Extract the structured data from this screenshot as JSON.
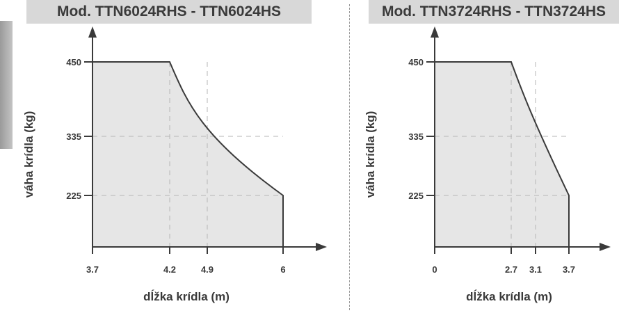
{
  "colors": {
    "header_bg": "#d8d8d8",
    "text": "#3a3a3a",
    "fill": "#e6e6e6",
    "line": "#3a3a3a",
    "grid": "#b5b5b5"
  },
  "chart_data": [
    {
      "type": "area",
      "title": "Mod. TTN6024RHS - TTN6024HS",
      "xlabel": "dĺžka krídla (m)",
      "ylabel": "váha krídla (kg)",
      "x_ticks": [
        3.7,
        4.2,
        4.9,
        6
      ],
      "x_tick_labels": [
        "3.7",
        "4.2",
        "4.9",
        "6"
      ],
      "y_ticks": [
        225,
        335,
        450
      ],
      "y_tick_labels": [
        "225",
        "335",
        "450"
      ],
      "series": [
        {
          "x": [
            3.7,
            4.2,
            4.9,
            6
          ],
          "y": [
            450,
            450,
            335,
            225
          ]
        }
      ],
      "grid": "dashed at tick values"
    },
    {
      "type": "area",
      "title": "Mod. TTN3724RHS - TTN3724HS",
      "xlabel": "dĺžka krídla (m)",
      "ylabel": "váha krídla (kg)",
      "x_ticks": [
        0,
        2.7,
        3.1,
        3.7
      ],
      "x_tick_labels": [
        "0",
        "2.7",
        "3.1",
        "3.7"
      ],
      "y_ticks": [
        225,
        335,
        450
      ],
      "y_tick_labels": [
        "225",
        "335",
        "450"
      ],
      "series": [
        {
          "x": [
            0,
            2.7,
            3.1,
            3.7
          ],
          "y": [
            450,
            450,
            335,
            225
          ]
        }
      ],
      "grid": "dashed at tick values"
    }
  ]
}
